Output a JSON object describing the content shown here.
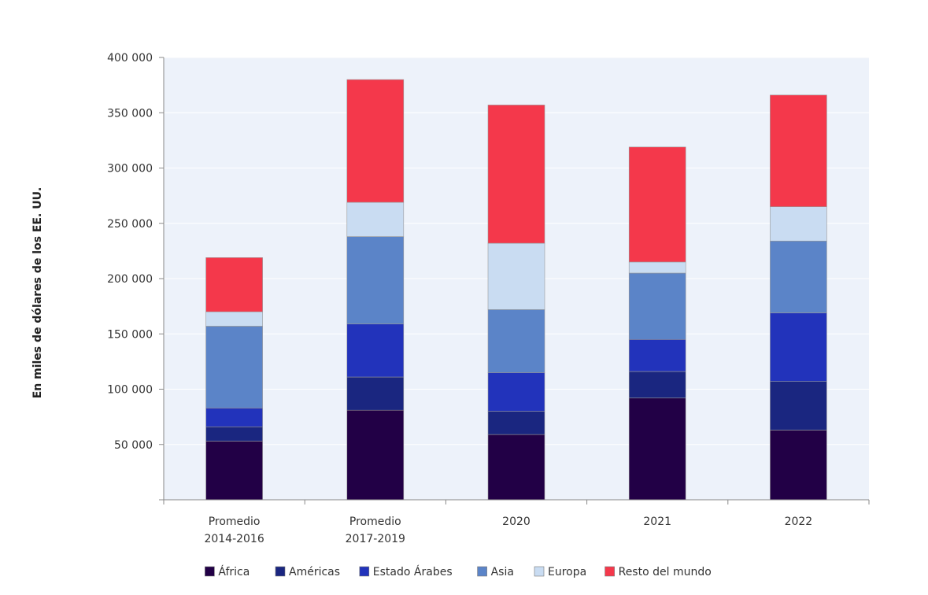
{
  "chart_data": {
    "type": "bar",
    "stacked": true,
    "title": "",
    "xlabel": "",
    "ylabel": "En miles de dólares de los EE. UU.",
    "ylim": [
      0,
      400000
    ],
    "yticks": [
      50000,
      100000,
      150000,
      200000,
      250000,
      300000,
      350000,
      400000
    ],
    "ytick_labels": [
      "50 000",
      "100 000",
      "150 000",
      "200 000",
      "250 000",
      "300 000",
      "350 000",
      "400 000"
    ],
    "categories": [
      [
        "Promedio",
        "2014-2016"
      ],
      [
        "Promedio",
        "2017-2019"
      ],
      [
        "2020"
      ],
      [
        "2021"
      ],
      [
        "2022"
      ]
    ],
    "grid": true,
    "legend_position": "bottom",
    "series": [
      {
        "name": "África",
        "color": "#220046",
        "values": [
          53000,
          81000,
          59000,
          92000,
          63000
        ]
      },
      {
        "name": "Américas",
        "color": "#1a2680",
        "values": [
          13000,
          30000,
          21000,
          24000,
          44000
        ]
      },
      {
        "name": "Estado Árabes",
        "color": "#2233bb",
        "values": [
          17000,
          48000,
          35000,
          29000,
          62000
        ]
      },
      {
        "name": "Asia",
        "color": "#5b84c8",
        "values": [
          74000,
          79000,
          57000,
          60000,
          65000
        ]
      },
      {
        "name": "Europa",
        "color": "#c9dcf2",
        "values": [
          13000,
          31000,
          60000,
          10000,
          31000
        ]
      },
      {
        "name": "Resto del mundo",
        "color": "#f4384b",
        "values": [
          49000,
          111000,
          125000,
          104000,
          101000
        ]
      }
    ]
  }
}
